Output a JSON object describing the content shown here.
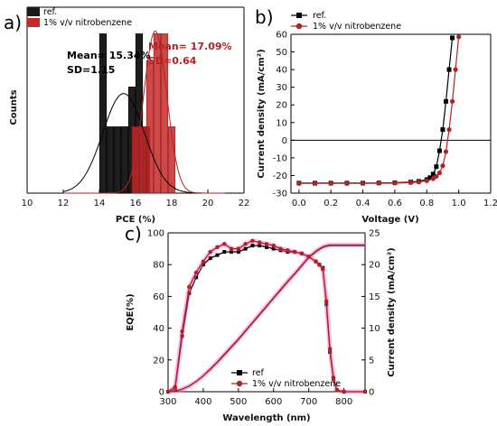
{
  "figure": {
    "panel_a": "a)",
    "panel_b": "b)",
    "panel_c": "c)"
  },
  "colors": {
    "ref": "#000000",
    "nitro": "#b22222",
    "nitro_fill": "#d32f2f",
    "eqe_outline": "#ff66cc"
  },
  "chart_data": [
    {
      "type": "bar",
      "xlabel": "PCE (%)",
      "ylabel": "Counts",
      "xlim": [
        10,
        22
      ],
      "xticks": [
        10,
        12,
        14,
        16,
        18,
        20,
        22
      ],
      "legend": [
        "ref.",
        "1% v/v nitrobenzene"
      ],
      "legend_placement": "top-left",
      "annotations": {
        "ref": [
          "Mean= 15.34%",
          "SD=1.15"
        ],
        "nitro": [
          "Mean= 17.09%",
          "SD=0.64"
        ]
      },
      "series": [
        {
          "name": "ref.",
          "color": "#000000",
          "bins": [
            {
              "x": 14.2,
              "count": 12
            },
            {
              "x": 14.6,
              "count": 5
            },
            {
              "x": 15.0,
              "count": 5
            },
            {
              "x": 15.4,
              "count": 5
            },
            {
              "x": 15.8,
              "count": 8
            },
            {
              "x": 16.2,
              "count": 12
            },
            {
              "x": 16.6,
              "count": 5
            }
          ],
          "fit": {
            "mean": 15.34,
            "sd": 1.15,
            "peak": 7.5
          }
        },
        {
          "name": "1% v/v nitrobenzene",
          "color": "#b22222",
          "bins": [
            {
              "x": 16.0,
              "count": 5
            },
            {
              "x": 16.4,
              "count": 5
            },
            {
              "x": 16.8,
              "count": 10
            },
            {
              "x": 17.2,
              "count": 12
            },
            {
              "x": 17.6,
              "count": 12
            },
            {
              "x": 18.0,
              "count": 5
            }
          ],
          "fit": {
            "mean": 17.09,
            "sd": 0.64,
            "peak": 12.2
          }
        }
      ]
    },
    {
      "type": "line",
      "xlabel": "Voltage (V)",
      "ylabel": "Current density (mA/cm²)",
      "xlim": [
        -0.05,
        1.2
      ],
      "ylim": [
        -30,
        60
      ],
      "xticks": [
        0.0,
        0.2,
        0.4,
        0.6,
        0.8,
        1.0,
        1.2
      ],
      "yticks": [
        -30,
        -20,
        -10,
        0,
        10,
        20,
        30,
        40,
        50,
        60
      ],
      "legend_placement": "top-left",
      "series": [
        {
          "name": "ref.",
          "color": "#000000",
          "x": [
            0.0,
            0.1,
            0.2,
            0.3,
            0.4,
            0.5,
            0.6,
            0.7,
            0.75,
            0.8,
            0.82,
            0.84,
            0.86,
            0.88,
            0.9,
            0.92,
            0.94,
            0.96
          ],
          "y": [
            -24.3,
            -24.3,
            -24.3,
            -24.3,
            -24.3,
            -24.2,
            -24.1,
            -23.7,
            -23.3,
            -22.3,
            -21.2,
            -19.2,
            -15.0,
            -6.0,
            6.0,
            22.0,
            40.0,
            58.0
          ]
        },
        {
          "name": "1% v/v nitrobenzene",
          "color": "#b22222",
          "x": [
            0.0,
            0.1,
            0.2,
            0.3,
            0.4,
            0.5,
            0.6,
            0.7,
            0.75,
            0.8,
            0.84,
            0.86,
            0.88,
            0.9,
            0.92,
            0.94,
            0.96,
            0.98,
            1.0
          ],
          "y": [
            -24.5,
            -24.5,
            -24.5,
            -24.5,
            -24.5,
            -24.4,
            -24.3,
            -24.0,
            -23.7,
            -23.0,
            -21.8,
            -20.5,
            -18.5,
            -14.5,
            -6.5,
            6.0,
            22.0,
            40.0,
            58.5
          ]
        }
      ]
    },
    {
      "type": "line",
      "xlabel": "Wavelength (nm)",
      "ylabel": "EQE(%)",
      "y2label": "Current density (mA/cm²)",
      "xlim": [
        300,
        860
      ],
      "ylim": [
        0,
        100
      ],
      "y2lim": [
        0,
        25
      ],
      "xticks": [
        300,
        400,
        500,
        600,
        700,
        800
      ],
      "yticks": [
        0,
        20,
        40,
        60,
        80,
        100
      ],
      "y2ticks": [
        0,
        5,
        10,
        15,
        20,
        25
      ],
      "legend_placement": "bottom-center",
      "series": [
        {
          "name": "ref",
          "color": "#000000",
          "x": [
            300,
            320,
            340,
            360,
            380,
            400,
            420,
            440,
            460,
            480,
            500,
            520,
            540,
            560,
            580,
            600,
            620,
            640,
            660,
            680,
            700,
            720,
            730,
            740,
            750,
            760,
            770,
            780,
            800,
            860
          ],
          "y": [
            0,
            2,
            35,
            62,
            72,
            80,
            84,
            86,
            88,
            88,
            88,
            90,
            92,
            92,
            91,
            90,
            89,
            88,
            88,
            87,
            85,
            82,
            80,
            78,
            55,
            25,
            8,
            1,
            0,
            0
          ],
          "integrated": [
            0,
            0.1,
            0.4,
            0.9,
            1.6,
            2.5,
            3.5,
            4.6,
            5.8,
            7.0,
            8.2,
            9.5,
            10.8,
            12.1,
            13.4,
            14.7,
            16.0,
            17.3,
            18.5,
            19.8,
            21.1,
            22.0,
            22.4,
            22.7,
            22.9,
            23.0,
            23.0,
            23.0,
            23.0,
            23.0
          ]
        },
        {
          "name": "1% v/v nitrobenzene",
          "color": "#b22222",
          "x": [
            300,
            320,
            340,
            360,
            380,
            400,
            420,
            440,
            460,
            480,
            500,
            520,
            540,
            560,
            580,
            600,
            620,
            640,
            660,
            680,
            700,
            720,
            730,
            740,
            750,
            760,
            770,
            780,
            800,
            860
          ],
          "y": [
            0,
            3,
            38,
            66,
            75,
            82,
            88,
            91,
            93,
            90,
            90,
            93,
            95,
            94,
            93,
            92,
            90,
            89,
            88,
            87,
            85,
            82,
            80,
            77,
            57,
            27,
            9,
            1,
            0,
            0
          ],
          "integrated": [
            0,
            0.1,
            0.4,
            0.9,
            1.6,
            2.5,
            3.6,
            4.7,
            5.9,
            7.1,
            8.3,
            9.6,
            10.9,
            12.2,
            13.5,
            14.8,
            16.1,
            17.4,
            18.6,
            19.9,
            21.2,
            22.1,
            22.5,
            22.8,
            23.0,
            23.1,
            23.1,
            23.1,
            23.1,
            23.1
          ]
        }
      ]
    }
  ]
}
